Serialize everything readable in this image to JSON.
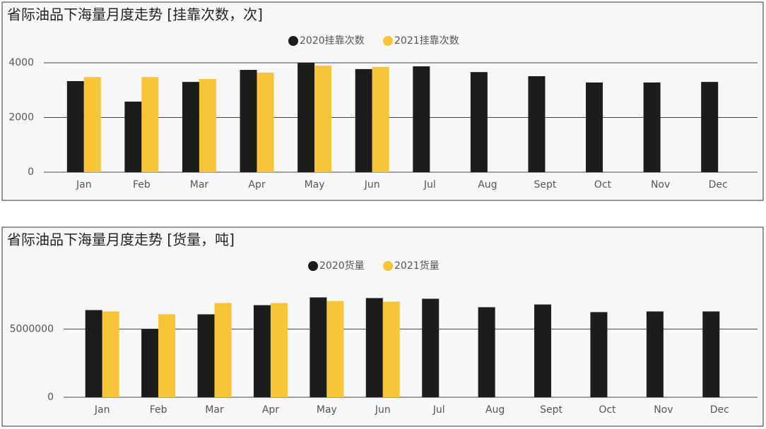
{
  "chart_data": [
    {
      "type": "bar",
      "title": "省际油品下海量月度走势 [挂靠次数，次]",
      "categories": [
        "Jan",
        "Feb",
        "Mar",
        "Apr",
        "May",
        "Jun",
        "Jul",
        "Aug",
        "Sept",
        "Oct",
        "Nov",
        "Dec"
      ],
      "series": [
        {
          "name": "2020挂靠次数",
          "color": "#1c1c1c",
          "values": [
            3330,
            2580,
            3300,
            3740,
            4000,
            3770,
            3870,
            3660,
            3510,
            3280,
            3280,
            3300
          ]
        },
        {
          "name": "2021挂靠次数",
          "color": "#f7c638",
          "values": [
            3480,
            3480,
            3410,
            3640,
            3900,
            3850,
            null,
            null,
            null,
            null,
            null,
            null
          ]
        }
      ],
      "ylim": [
        0,
        4000
      ],
      "yticks": [
        0,
        2000,
        4000
      ],
      "grid": true,
      "legend": "top"
    },
    {
      "type": "bar",
      "title": "省际油品下海量月度走势 [货量，吨]",
      "categories": [
        "Jan",
        "Feb",
        "Mar",
        "Apr",
        "May",
        "Jun",
        "Jul",
        "Aug",
        "Sept",
        "Oct",
        "Nov",
        "Dec"
      ],
      "series": [
        {
          "name": "2020货量",
          "color": "#1c1c1c",
          "values": [
            6390000,
            5000000,
            6080000,
            6750000,
            7320000,
            7270000,
            7220000,
            6600000,
            6800000,
            6240000,
            6290000,
            6290000
          ]
        },
        {
          "name": "2021货量",
          "color": "#f7c638",
          "values": [
            6290000,
            6080000,
            6910000,
            6910000,
            7060000,
            7010000,
            null,
            null,
            null,
            null,
            null,
            null
          ]
        }
      ],
      "ylim": [
        0,
        7500000
      ],
      "yticks": [
        0,
        5000000
      ],
      "grid": true,
      "legend": "top"
    }
  ]
}
